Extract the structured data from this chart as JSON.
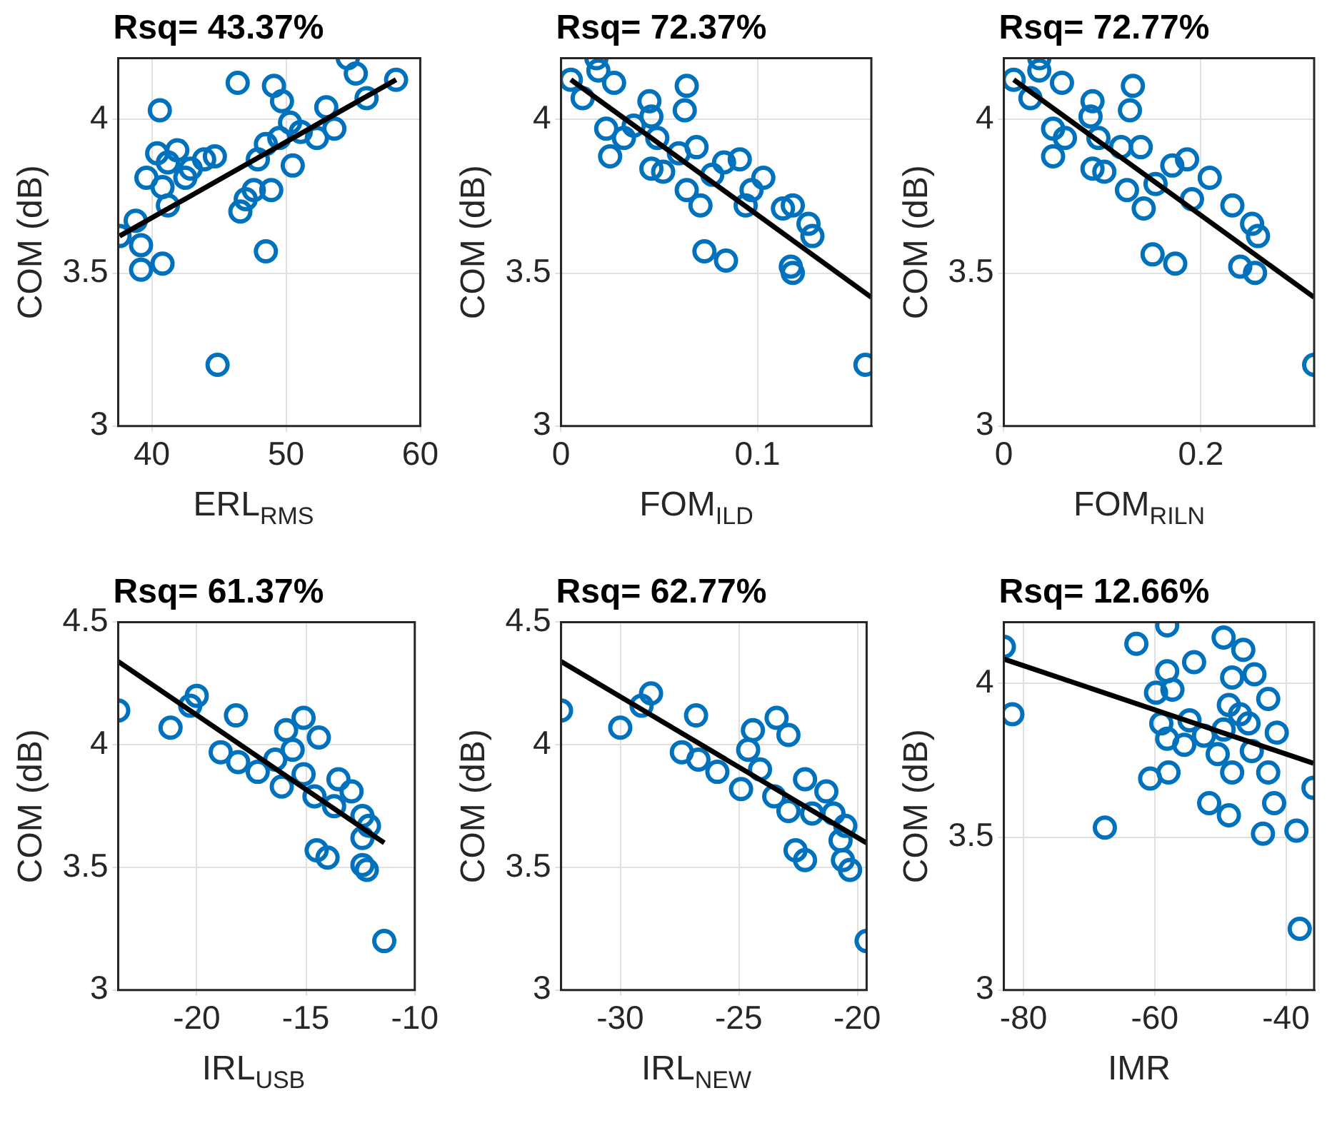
{
  "chart_data": [
    {
      "type": "scatter",
      "title": "Rsq= 43.37%",
      "xlabel": "ERL$_{RMS}$",
      "ylabel": "COM (dB)",
      "xlim": [
        37.5,
        60
      ],
      "ylim": [
        3,
        4.2
      ],
      "xticks": [
        40,
        50,
        60
      ],
      "yticks": [
        3,
        3.5,
        4
      ],
      "grid": true,
      "marker": "circle",
      "series": [
        {
          "color": "#0072bd",
          "x": [
            37.6,
            38.8,
            39.2,
            39.2,
            40.8,
            40.6,
            39.6,
            40.8,
            41.2,
            41.9,
            42.5,
            41.2,
            42.9,
            43.9,
            44.7,
            44.9,
            46.4,
            46.6,
            47.0,
            47.6,
            48.5,
            48.9,
            47.9,
            48.5,
            49.1,
            49.7,
            50.3,
            49.5,
            50.5,
            51.1,
            52.3,
            53.0,
            53.6,
            54.6,
            55.2,
            56.0,
            58.2,
            40.4
          ],
          "values": [
            3.62,
            3.67,
            3.59,
            3.51,
            3.53,
            4.03,
            3.81,
            3.78,
            3.86,
            3.9,
            3.81,
            3.72,
            3.84,
            3.87,
            3.88,
            3.2,
            4.12,
            3.7,
            3.74,
            3.77,
            3.57,
            3.77,
            3.87,
            3.92,
            4.11,
            4.06,
            3.99,
            3.94,
            3.85,
            3.96,
            3.94,
            4.04,
            3.97,
            4.2,
            4.15,
            4.07,
            4.13,
            3.89
          ]
        },
        {
          "type": "line",
          "color": "#000000",
          "marker": "none",
          "x": [
            37.6,
            58.2
          ],
          "values": [
            3.62,
            4.13
          ]
        }
      ]
    },
    {
      "type": "scatter",
      "title": "Rsq= 72.37%",
      "xlabel": "FOM$_{ILD}$",
      "ylabel": "COM (dB)",
      "xlim": [
        0,
        0.158
      ],
      "ylim": [
        3,
        4.2
      ],
      "xticks": [
        0,
        0.1
      ],
      "yticks": [
        3,
        3.5,
        4
      ],
      "grid": true,
      "marker": "circle",
      "series": [
        {
          "color": "#0072bd",
          "x": [
            0.005,
            0.018,
            0.019,
            0.011,
            0.027,
            0.023,
            0.025,
            0.032,
            0.037,
            0.045,
            0.046,
            0.046,
            0.052,
            0.049,
            0.064,
            0.063,
            0.06,
            0.069,
            0.064,
            0.071,
            0.073,
            0.084,
            0.077,
            0.083,
            0.091,
            0.094,
            0.097,
            0.103,
            0.113,
            0.118,
            0.117,
            0.118,
            0.126,
            0.128,
            0.155
          ],
          "values": [
            4.13,
            4.2,
            4.16,
            4.07,
            4.12,
            3.97,
            3.88,
            3.94,
            3.98,
            4.06,
            4.01,
            3.84,
            3.83,
            3.94,
            4.11,
            4.03,
            3.89,
            3.91,
            3.77,
            3.72,
            3.57,
            3.54,
            3.82,
            3.86,
            3.87,
            3.72,
            3.77,
            3.81,
            3.71,
            3.72,
            3.52,
            3.5,
            3.66,
            3.62,
            3.2
          ]
        },
        {
          "type": "line",
          "color": "#000000",
          "marker": "none",
          "x": [
            0.005,
            0.158
          ],
          "values": [
            4.13,
            3.42
          ]
        }
      ]
    },
    {
      "type": "scatter",
      "title": "Rsq= 72.77%",
      "xlabel": "FOM$_{RILN}$",
      "ylabel": "COM (dB)",
      "xlim": [
        0,
        0.315
      ],
      "ylim": [
        3,
        4.2
      ],
      "xticks": [
        0,
        0.2
      ],
      "yticks": [
        3,
        3.5,
        4
      ],
      "grid": true,
      "marker": "circle",
      "series": [
        {
          "color": "#0072bd",
          "x": [
            0.01,
            0.036,
            0.036,
            0.027,
            0.059,
            0.05,
            0.05,
            0.062,
            0.09,
            0.088,
            0.09,
            0.102,
            0.096,
            0.131,
            0.128,
            0.119,
            0.139,
            0.125,
            0.142,
            0.151,
            0.174,
            0.154,
            0.171,
            0.186,
            0.191,
            0.209,
            0.232,
            0.252,
            0.258,
            0.24,
            0.255,
            0.315
          ],
          "values": [
            4.13,
            4.2,
            4.16,
            4.07,
            4.12,
            3.97,
            3.88,
            3.94,
            4.06,
            4.01,
            3.84,
            3.83,
            3.94,
            4.11,
            4.03,
            3.91,
            3.91,
            3.77,
            3.71,
            3.56,
            3.53,
            3.79,
            3.85,
            3.87,
            3.74,
            3.81,
            3.72,
            3.66,
            3.62,
            3.52,
            3.5,
            3.2
          ]
        },
        {
          "type": "line",
          "color": "#000000",
          "marker": "none",
          "x": [
            0.01,
            0.315
          ],
          "values": [
            4.13,
            3.42
          ]
        }
      ]
    },
    {
      "type": "scatter",
      "title": "Rsq= 61.37%",
      "xlabel": "IRL$_{USB}$",
      "ylabel": "COM (dB)",
      "xlim": [
        -23.6,
        -10
      ],
      "ylim": [
        3,
        4.5
      ],
      "xticks": [
        -20,
        -15,
        -10
      ],
      "yticks": [
        3,
        3.5,
        4,
        4.5
      ],
      "grid": true,
      "marker": "circle",
      "series": [
        {
          "color": "#0072bd",
          "x": [
            -23.6,
            -21.2,
            -20.0,
            -20.3,
            -18.2,
            -18.9,
            -18.1,
            -17.2,
            -16.4,
            -16.1,
            -15.6,
            -15.9,
            -15.1,
            -14.4,
            -15.1,
            -14.6,
            -14.5,
            -14.0,
            -13.5,
            -12.9,
            -12.4,
            -12.1,
            -12.4,
            -12.4,
            -12.2,
            -11.4,
            -13.7
          ],
          "values": [
            4.14,
            4.07,
            4.2,
            4.16,
            4.12,
            3.97,
            3.93,
            3.89,
            3.94,
            3.83,
            3.98,
            4.06,
            4.11,
            4.03,
            3.88,
            3.79,
            3.57,
            3.54,
            3.86,
            3.81,
            3.71,
            3.67,
            3.62,
            3.51,
            3.49,
            3.2,
            3.75
          ]
        },
        {
          "type": "line",
          "color": "#000000",
          "marker": "none",
          "x": [
            -23.6,
            -11.4
          ],
          "values": [
            4.34,
            3.6
          ]
        }
      ]
    },
    {
      "type": "scatter",
      "title": "Rsq= 62.77%",
      "xlabel": "IRL$_{NEW}$",
      "ylabel": "COM (dB)",
      "xlim": [
        -32.5,
        -19.6
      ],
      "ylim": [
        3,
        4.5
      ],
      "xticks": [
        -30,
        -25,
        -20
      ],
      "yticks": [
        3,
        3.5,
        4,
        4.5
      ],
      "grid": true,
      "marker": "circle",
      "series": [
        {
          "color": "#0072bd",
          "x": [
            -32.5,
            -30.0,
            -28.7,
            -29.1,
            -26.8,
            -27.4,
            -26.7,
            -25.9,
            -24.9,
            -24.6,
            -24.4,
            -23.4,
            -22.9,
            -24.1,
            -23.5,
            -22.9,
            -22.6,
            -22.2,
            -22.2,
            -21.3,
            -21.9,
            -21.0,
            -20.5,
            -20.7,
            -20.6,
            -20.3,
            -19.6
          ],
          "values": [
            4.14,
            4.07,
            4.21,
            4.16,
            4.12,
            3.97,
            3.94,
            3.89,
            3.82,
            3.98,
            4.06,
            4.11,
            4.04,
            3.9,
            3.79,
            3.73,
            3.57,
            3.53,
            3.86,
            3.81,
            3.72,
            3.72,
            3.67,
            3.61,
            3.53,
            3.49,
            3.2
          ]
        },
        {
          "type": "line",
          "color": "#000000",
          "marker": "none",
          "x": [
            -32.5,
            -19.6
          ],
          "values": [
            4.34,
            3.6
          ]
        }
      ]
    },
    {
      "type": "scatter",
      "title": "Rsq= 12.66%",
      "xlabel": "IMR",
      "ylabel": "COM (dB)",
      "xlim": [
        -83,
        -35.7
      ],
      "ylim": [
        3,
        4.2
      ],
      "xticks": [
        -80,
        -60,
        -40
      ],
      "yticks": [
        3,
        3.5,
        4
      ],
      "grid": true,
      "marker": "circle",
      "series": [
        {
          "color": "#0072bd",
          "x": [
            -83.0,
            -81.7,
            -67.6,
            -62.8,
            -58.1,
            -60.7,
            -57.9,
            -59.8,
            -58.1,
            -57.3,
            -54.0,
            -59.0,
            -58.1,
            -55.5,
            -54.7,
            -52.5,
            -51.7,
            -48.7,
            -49.5,
            -46.5,
            -44.8,
            -48.2,
            -48.7,
            -47.0,
            -50.4,
            -48.2,
            -45.7,
            -42.7,
            -41.4,
            -42.7,
            -41.8,
            -43.5,
            -38.4,
            -35.8,
            -37.9,
            -45.2,
            -49.5
          ],
          "values": [
            4.12,
            3.9,
            3.53,
            4.13,
            4.19,
            3.69,
            3.71,
            3.97,
            4.04,
            3.98,
            4.07,
            3.87,
            3.82,
            3.8,
            3.88,
            3.83,
            3.61,
            3.57,
            4.15,
            4.11,
            4.03,
            4.02,
            3.93,
            3.9,
            3.77,
            3.71,
            3.87,
            3.95,
            3.84,
            3.71,
            3.61,
            3.51,
            3.52,
            3.66,
            3.2,
            3.78,
            3.85
          ]
        },
        {
          "type": "line",
          "color": "#000000",
          "marker": "none",
          "x": [
            -83,
            -35.8
          ],
          "values": [
            4.08,
            3.74
          ]
        }
      ]
    }
  ]
}
